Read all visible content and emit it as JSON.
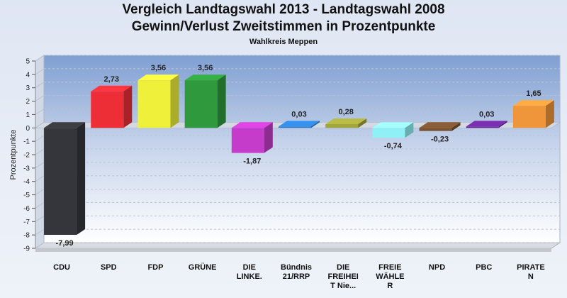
{
  "chart_data": {
    "type": "bar",
    "title": "Vergleich Landtagswahl 2013 - Landtagswahl 2008",
    "subtitle": "Gewinn/Verlust Zweitstimmen in Prozentpunkte",
    "subtitle2": "Wahlkreis Meppen",
    "ylabel": "Prozentpunkte",
    "xlabel": "",
    "ylim": [
      -9,
      5
    ],
    "yticks": [
      5,
      4,
      3,
      2,
      1,
      0,
      -1,
      -2,
      -3,
      -4,
      -5,
      -6,
      -7,
      -8,
      -9
    ],
    "grid": true,
    "categories": [
      [
        "CDU"
      ],
      [
        "SPD"
      ],
      [
        "FDP"
      ],
      [
        "GRÜNE"
      ],
      [
        "DIE",
        "LINKE."
      ],
      [
        "Bündnis",
        "21/RRP"
      ],
      [
        "DIE",
        "FREIHEI",
        "T Nie..."
      ],
      [
        "FREIE",
        "WÄHLE",
        "R"
      ],
      [
        "NPD"
      ],
      [
        "PBC"
      ],
      [
        "PIRATE",
        "N"
      ]
    ],
    "values": [
      -7.99,
      2.73,
      3.56,
      3.56,
      -1.87,
      0.03,
      0.28,
      -0.74,
      -0.23,
      0.03,
      1.65
    ],
    "value_labels": [
      "-7,99",
      "2,73",
      "3,56",
      "3,56",
      "-1,87",
      "0,03",
      "0,28",
      "-0,74",
      "-0,23",
      "0,03",
      "1,65"
    ],
    "colors": [
      "#34363b",
      "#ee2e37",
      "#eef03a",
      "#2f9a3d",
      "#c43cc9",
      "#2f7fd0",
      "#a2a43c",
      "#8ff1f6",
      "#7a5230",
      "#6a2a9a",
      "#f0963a"
    ]
  }
}
